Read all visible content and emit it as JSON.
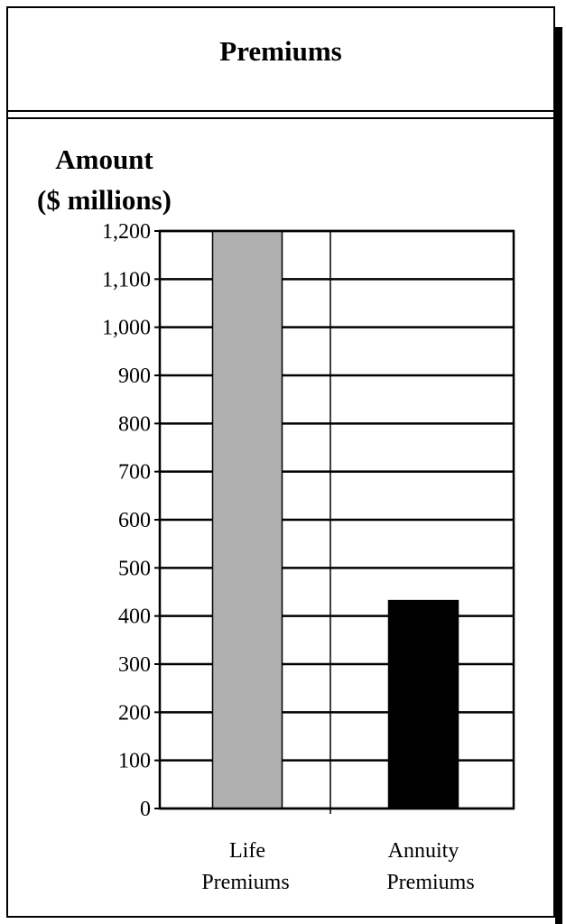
{
  "chart_data": {
    "type": "bar",
    "title": "Premiums",
    "ylabel": [
      "Amount",
      "($ millions)"
    ],
    "xlabel": "",
    "categories": [
      {
        "line1": "Life",
        "line2": "Premiums"
      },
      {
        "line1": "Annuity",
        "line2": "Premiums"
      }
    ],
    "values": [
      1200,
      432
    ],
    "colors": [
      "#b0b0b0",
      "#000000"
    ],
    "ylim": [
      0,
      1200
    ],
    "yticks": [
      "0",
      "100",
      "200",
      "300",
      "400",
      "500",
      "600",
      "700",
      "800",
      "900",
      "1,000",
      "1,100",
      "1,200"
    ],
    "grid": true,
    "legend": "none"
  }
}
